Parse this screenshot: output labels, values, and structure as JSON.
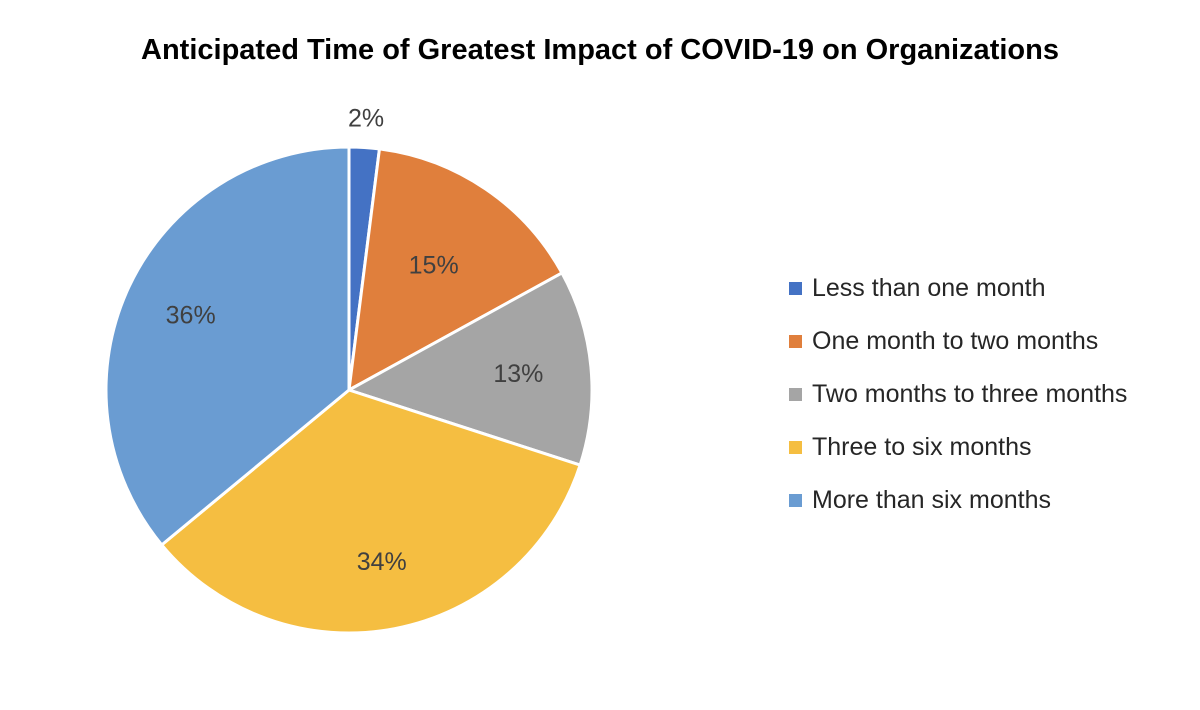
{
  "chart_data": {
    "type": "pie",
    "title": "Anticipated Time of Greatest Impact of COVID-19 on Organizations",
    "categories": [
      "Less than one month",
      "One month to two months",
      "Two months to three months",
      "Three to six months",
      "More than six months"
    ],
    "values": [
      2,
      15,
      13,
      34,
      36
    ],
    "labels": [
      "2%",
      "15%",
      "13%",
      "34%",
      "36%"
    ],
    "colors": [
      "#4472C4",
      "#E07F3C",
      "#A5A5A5",
      "#F5BE41",
      "#6A9CD2"
    ],
    "legend_position": "right",
    "start": "12 o'clock, clockwise"
  }
}
